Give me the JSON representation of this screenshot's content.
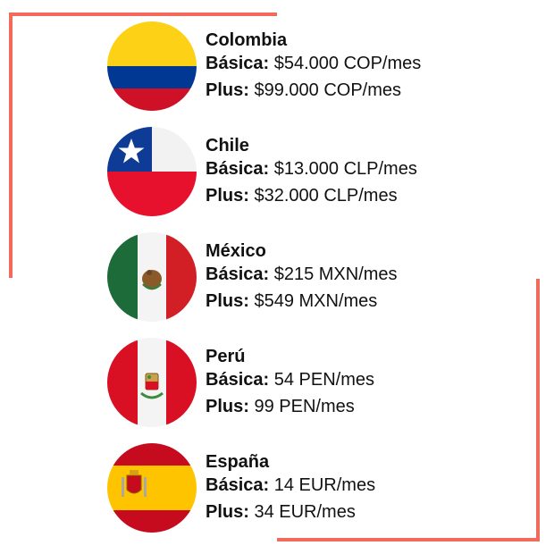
{
  "colors": {
    "frame": "#f26a5c"
  },
  "countries": [
    {
      "name": "Colombia",
      "flag_icon": "colombia-flag-icon",
      "basica_label": "Básica:",
      "basica_price": "$54.000 COP/mes",
      "plus_label": "Plus:",
      "plus_price": "$99.000 COP/mes"
    },
    {
      "name": "Chile",
      "flag_icon": "chile-flag-icon",
      "basica_label": "Básica:",
      "basica_price": "$13.000 CLP/mes",
      "plus_label": "Plus:",
      "plus_price": "$32.000 CLP/mes"
    },
    {
      "name": "México",
      "flag_icon": "mexico-flag-icon",
      "basica_label": "Básica:",
      "basica_price": "$215 MXN/mes",
      "plus_label": "Plus:",
      "plus_price": "$549 MXN/mes"
    },
    {
      "name": "Perú",
      "flag_icon": "peru-flag-icon",
      "basica_label": "Básica:",
      "basica_price": "54 PEN/mes",
      "plus_label": "Plus:",
      "plus_price": "99 PEN/mes"
    },
    {
      "name": "España",
      "flag_icon": "spain-flag-icon",
      "basica_label": "Básica:",
      "basica_price": "14 EUR/mes",
      "plus_label": "Plus:",
      "plus_price": "34 EUR/mes"
    }
  ]
}
